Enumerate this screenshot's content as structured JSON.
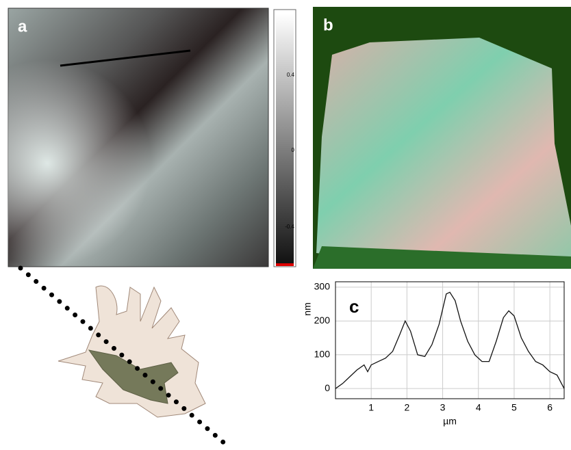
{
  "panels": {
    "a": {
      "label": "a",
      "scale_labels": [
        "0.4",
        "0",
        "-0.4"
      ]
    },
    "b": {
      "label": "b"
    }
  },
  "chart_data": {
    "type": "line",
    "label": "c",
    "x_label": "µm",
    "y_label": "nm",
    "x": [
      0,
      0.2,
      0.4,
      0.6,
      0.8,
      0.9,
      1.0,
      1.2,
      1.4,
      1.6,
      1.8,
      1.95,
      2.1,
      2.3,
      2.5,
      2.7,
      2.9,
      3.1,
      3.2,
      3.35,
      3.5,
      3.7,
      3.9,
      4.1,
      4.3,
      4.5,
      4.7,
      4.85,
      5.0,
      5.2,
      5.4,
      5.6,
      5.8,
      6.0,
      6.2,
      6.4
    ],
    "values": [
      0,
      15,
      35,
      55,
      70,
      50,
      70,
      80,
      90,
      110,
      160,
      200,
      170,
      100,
      95,
      130,
      190,
      280,
      285,
      260,
      200,
      140,
      100,
      80,
      80,
      140,
      210,
      230,
      215,
      150,
      110,
      80,
      70,
      50,
      40,
      0
    ],
    "color": "#111111",
    "xlim": [
      0,
      6.4
    ],
    "ylim": [
      -30,
      316
    ],
    "xticks": [
      1,
      2,
      3,
      4,
      5,
      6
    ],
    "yticks": [
      0,
      100,
      200,
      300
    ],
    "grid": true
  }
}
